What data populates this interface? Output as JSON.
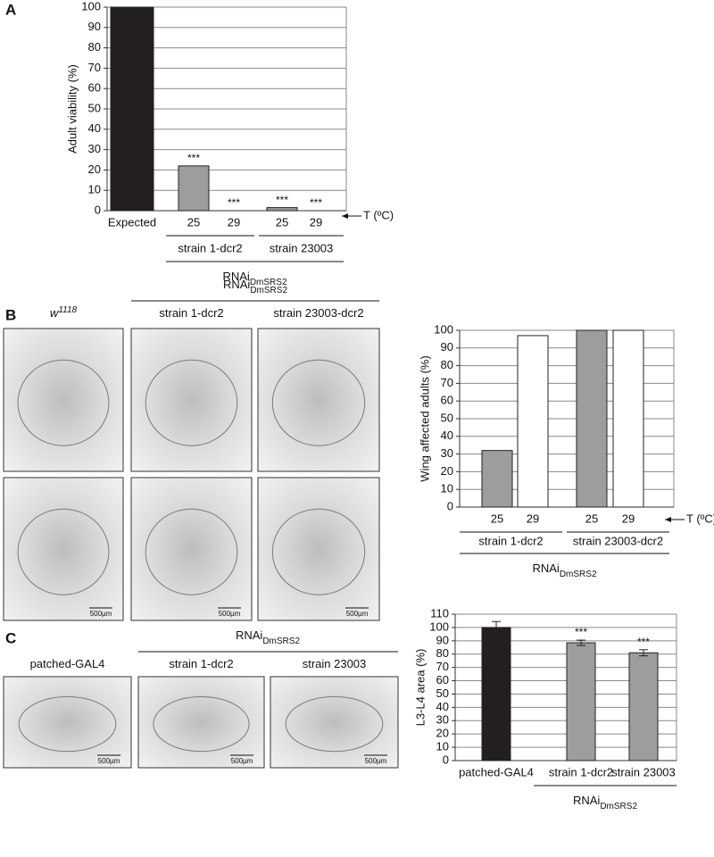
{
  "panels": [
    "A",
    "B",
    "C"
  ],
  "chart_data": [
    {
      "type": "bar",
      "y_label": "Adult viability (%)",
      "categories": [
        "Expected",
        "25",
        "29",
        "25",
        "29"
      ],
      "values": [
        100,
        22,
        0,
        1.5,
        0
      ],
      "colors": [
        "#231f20",
        "#9d9d9d",
        "#9d9d9d",
        "#9d9d9d",
        "#9d9d9d"
      ],
      "significance": [
        null,
        "***",
        "***",
        "***",
        "***"
      ],
      "ylim": [
        0,
        100
      ],
      "yticks": [
        0,
        10,
        20,
        30,
        40,
        50,
        60,
        70,
        80,
        90,
        100
      ],
      "grid": true,
      "x_note": "T (ºC)",
      "groups": [
        "strain 1-dcr2",
        "strain 23003"
      ],
      "group_label": {
        "text": "RNAi",
        "subscript": "DmSRS2"
      }
    },
    {
      "type": "bar",
      "y_label": "Wing affected adults (%)",
      "categories": [
        "25",
        "29",
        "25",
        "29"
      ],
      "values": [
        32,
        97,
        100,
        100
      ],
      "colors": [
        "#9d9d9d",
        "#ffffff",
        "#9d9d9d",
        "#ffffff"
      ],
      "ylim": [
        0,
        100
      ],
      "yticks": [
        0,
        10,
        20,
        30,
        40,
        50,
        60,
        70,
        80,
        90,
        100
      ],
      "grid": true,
      "x_note": "T (ºC)",
      "groups": [
        "strain 1-dcr2",
        "strain 23003-dcr2"
      ],
      "group_label": {
        "text": "RNAi",
        "subscript": "DmSRS2"
      }
    },
    {
      "type": "bar",
      "y_label": "L3-L4 area (%)",
      "categories": [
        "patched-GAL4",
        "strain 1-dcr2",
        "strain 23003"
      ],
      "values": [
        100,
        88.5,
        81
      ],
      "errors": [
        4.5,
        2,
        2.3
      ],
      "colors": [
        "#231f20",
        "#9d9d9d",
        "#9d9d9d"
      ],
      "significance": [
        null,
        "***",
        "***"
      ],
      "ylim": [
        0,
        110
      ],
      "yticks": [
        0,
        10,
        20,
        30,
        40,
        50,
        60,
        70,
        80,
        90,
        100,
        110
      ],
      "grid": true,
      "group_label": {
        "text": "RNAi",
        "subscript": "DmSRS2"
      }
    }
  ],
  "images": {
    "B": {
      "header": {
        "text": "RNAi",
        "subscript": "DmSRS2"
      },
      "columns": [
        {
          "text": "w",
          "superscript": "1118"
        },
        {
          "text": "strain 1-dcr2"
        },
        {
          "text": "strain 23003-dcr2"
        }
      ],
      "scale_bar": "500µm"
    },
    "C": {
      "header": {
        "text": "RNAi",
        "subscript": "DmSRS2"
      },
      "columns": [
        {
          "text": "patched-GAL4"
        },
        {
          "text": "strain 1-dcr2"
        },
        {
          "text": "strain 23003"
        }
      ],
      "scale_bar": "500µm"
    }
  }
}
